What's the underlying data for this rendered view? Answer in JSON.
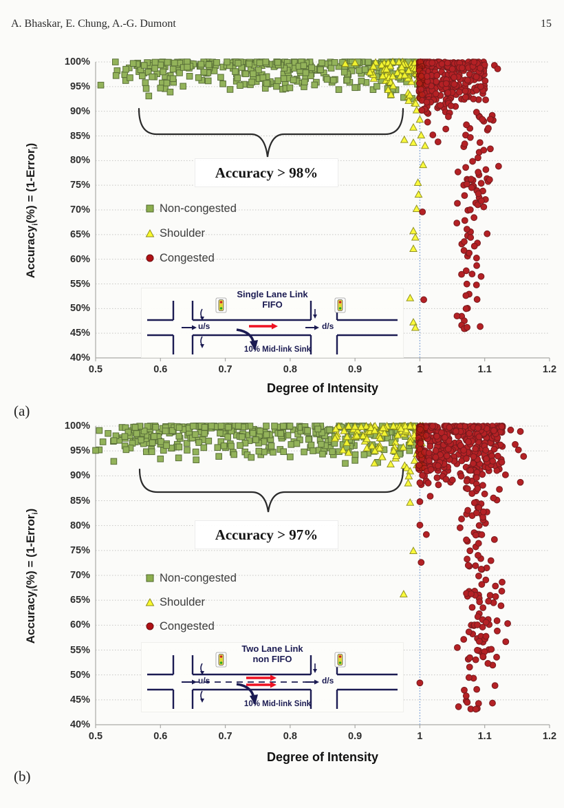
{
  "header": {
    "authors": "A. Bhaskar, E. Chung, A.-G. Dumont",
    "page_number": "15"
  },
  "colors": {
    "non_congested_fill": "#8CAE4E",
    "non_congested_stroke": "#4d652a",
    "shoulder_fill": "#FAFA2E",
    "shoulder_stroke": "#8b8b15",
    "congested_fill": "#AF1115",
    "congested_stroke": "#6d0a0d",
    "grid": "#c6c6c3",
    "axis": "#a9a9a6",
    "doi_line": "#8FAEDC",
    "brace": "#2b2b2b",
    "inset_ink": "#1b1b52",
    "inset_arrow": "#ee1122"
  },
  "chart_data": [
    {
      "type": "scatter",
      "panel_label": "(a)",
      "xlabel": "Degree of Intensity",
      "ylabel": "Accuracy_i(%) = (1-Error_i)",
      "ylabel_parts": {
        "p1": "Accuracy",
        "s1": "i",
        "p2": "(%) = (1-Error",
        "s2": "i",
        "p3": ")"
      },
      "xlim": [
        0.5,
        1.2
      ],
      "ylim": [
        40,
        100
      ],
      "x_ticks": [
        "0.5",
        "0.6",
        "0.7",
        "0.8",
        "0.9",
        "1",
        "1.1",
        "1.2"
      ],
      "y_ticks": [
        "100%",
        "95%",
        "90%",
        "85%",
        "80%",
        "75%",
        "70%",
        "65%",
        "60%",
        "55%",
        "50%",
        "45%",
        "40%"
      ],
      "grid": true,
      "legend_position": "inside-left",
      "reference_line_x": 1.0,
      "annotation": "Accuracy > 98%",
      "inset": {
        "title1": "Single Lane Link",
        "title2": "FIFO",
        "us": "u/s",
        "ds": "d/s",
        "sink": "10% Mid-link Sink",
        "center_line": "none",
        "arrows": 1
      },
      "series": [
        {
          "name": "Non-congested",
          "marker": "square",
          "clusters": [
            {
              "count": 310,
              "x": [
                0.6,
                0.998
              ],
              "y": [
                94.3,
                100
              ],
              "yp": 2.5,
              "xp": 1.15
            },
            {
              "count": 26,
              "x": [
                0.528,
                0.605
              ],
              "y": [
                94.6,
                100
              ],
              "yp": 1.8
            }
          ],
          "points": [
            [
              0.508,
              95.3
            ],
            [
              0.553,
              96.8
            ],
            [
              0.558,
              99.7
            ],
            [
              0.575,
              99.3
            ],
            [
              0.582,
              93.1
            ],
            [
              0.578,
              94.6
            ],
            [
              0.6,
              94.7
            ],
            [
              0.615,
              93.9
            ],
            [
              0.875,
              94.4
            ],
            [
              0.9,
              94.8
            ],
            [
              0.955,
              93.3
            ],
            [
              0.975,
              92.8
            ],
            [
              0.988,
              92.6
            ]
          ]
        },
        {
          "name": "Shoulder",
          "marker": "triangle",
          "clusters": [
            {
              "count": 72,
              "x": [
                0.922,
                1.004
              ],
              "y": [
                95,
                100
              ],
              "xp": 1.7,
              "yp": 1.7
            },
            {
              "count": 10,
              "x": [
                0.95,
                1.002
              ],
              "y": [
                91.5,
                95
              ],
              "xp": 1.4
            }
          ],
          "points": [
            [
              0.9,
              99.8
            ],
            [
              0.885,
              99.6
            ],
            [
              0.995,
              90.2
            ],
            [
              1.0,
              88.3
            ],
            [
              0.99,
              86.7
            ],
            [
              1.002,
              85.1
            ],
            [
              0.976,
              84.2
            ],
            [
              0.99,
              83.6
            ],
            [
              1.008,
              83.0
            ],
            [
              1.005,
              79.1
            ],
            [
              0.997,
              75.5
            ],
            [
              0.998,
              73.1
            ],
            [
              0.995,
              70.2
            ],
            [
              0.99,
              65.7
            ],
            [
              0.993,
              64.4
            ],
            [
              0.99,
              62.1
            ],
            [
              0.985,
              52.1
            ],
            [
              0.99,
              47.2
            ],
            [
              0.993,
              46.1
            ]
          ]
        },
        {
          "name": "Congested",
          "marker": "circle",
          "clusters": [
            {
              "count": 330,
              "x": [
                0.999,
                1.102
              ],
              "y": [
                92.3,
                100
              ],
              "xp": -1.6,
              "yp": 1.9
            },
            {
              "count": 22,
              "x": [
                1.0,
                1.07
              ],
              "y": [
                89.5,
                92.5
              ],
              "xp": -1.3
            },
            {
              "count": 78,
              "cx": 1.085,
              "xs": 0.021,
              "y": [
                56,
                90
              ]
            },
            {
              "count": 15,
              "cx": 1.074,
              "xs": 0.017,
              "y": [
                44,
                56
              ]
            }
          ],
          "points": [
            [
              1.003,
              90.2
            ],
            [
              1.012,
              87.8
            ],
            [
              1.02,
              85.2
            ],
            [
              1.028,
              83.8
            ],
            [
              1.004,
              69.6
            ],
            [
              1.006,
              51.8
            ],
            [
              1.044,
              88.9
            ],
            [
              1.04,
              86.4
            ],
            [
              1.115,
              99.3
            ],
            [
              1.12,
              98.6
            ]
          ]
        }
      ]
    },
    {
      "type": "scatter",
      "panel_label": "(b)",
      "xlabel": "Degree of Intensity",
      "ylabel": "Accuracy_i(%) = (1-Error_i)",
      "ylabel_parts": {
        "p1": "Accuracy",
        "s1": "i",
        "p2": "(%) = (1-Error",
        "s2": "i",
        "p3": ")"
      },
      "xlim": [
        0.5,
        1.2
      ],
      "ylim": [
        40,
        100
      ],
      "x_ticks": [
        "0.5",
        "0.6",
        "0.7",
        "0.8",
        "0.9",
        "1",
        "1.1",
        "1.2"
      ],
      "y_ticks": [
        "100%",
        "95%",
        "90%",
        "85%",
        "80%",
        "75%",
        "70%",
        "65%",
        "60%",
        "55%",
        "50%",
        "45%",
        "40%"
      ],
      "grid": true,
      "legend_position": "inside-left",
      "reference_line_x": 1.0,
      "annotation": "Accuracy > 97%",
      "inset": {
        "title1": "Two Lane Link",
        "title2": "non FIFO",
        "us": "u/s",
        "ds": "d/s",
        "sink": "10% Mid-link Sink",
        "center_line": "dashed",
        "arrows": 2
      },
      "series": [
        {
          "name": "Non-congested",
          "marker": "square",
          "clusters": [
            {
              "count": 340,
              "x": [
                0.558,
                0.996
              ],
              "y": [
                94.2,
                100
              ],
              "yp": 2.2
            },
            {
              "count": 24,
              "x": [
                0.505,
                0.562
              ],
              "y": [
                94.8,
                99.8
              ],
              "yp": 1.4
            }
          ],
          "points": [
            [
              0.5,
              95.1
            ],
            [
              0.528,
              92.9
            ],
            [
              0.545,
              97.9
            ],
            [
              0.6,
              93.4
            ],
            [
              0.628,
              93.6
            ],
            [
              0.655,
              93.2
            ],
            [
              0.69,
              93.9
            ],
            [
              0.74,
              93.7
            ],
            [
              0.8,
              93.8
            ],
            [
              0.885,
              92.5
            ],
            [
              0.9,
              93.1
            ],
            [
              0.935,
              92.7
            ]
          ]
        },
        {
          "name": "Shoulder",
          "marker": "triangle",
          "clusters": [
            {
              "count": 95,
              "x": [
                0.868,
                1.006
              ],
              "y": [
                94.4,
                100
              ],
              "xp": 1.6,
              "yp": 1.6
            },
            {
              "count": 12,
              "x": [
                0.94,
                1.004
              ],
              "y": [
                91.5,
                94.4
              ],
              "xp": 1.3
            }
          ],
          "points": [
            [
              0.93,
              92.5
            ],
            [
              0.955,
              92.3
            ],
            [
              0.985,
              90.9
            ],
            [
              0.983,
              89.9
            ],
            [
              0.982,
              88.5
            ],
            [
              0.985,
              84.6
            ],
            [
              0.99,
              74.9
            ],
            [
              0.975,
              66.2
            ]
          ]
        },
        {
          "name": "Congested",
          "marker": "circle",
          "clusters": [
            {
              "count": 400,
              "x": [
                0.998,
                1.128
              ],
              "y": [
                91,
                100
              ],
              "xp": -1.5,
              "yp": 1.8
            },
            {
              "count": 30,
              "x": [
                1.0,
                1.105
              ],
              "y": [
                88,
                91.3
              ],
              "xp": -1.2
            },
            {
              "count": 110,
              "cx": 1.094,
              "xs": 0.024,
              "y": [
                50,
                88
              ]
            },
            {
              "count": 14,
              "cx": 1.083,
              "xs": 0.02,
              "y": [
                43,
                50
              ]
            }
          ],
          "points": [
            [
              1.0,
              88.6
            ],
            [
              1.0,
              84.8
            ],
            [
              1.0,
              80.1
            ],
            [
              1.002,
              72.6
            ],
            [
              1.0,
              48.4
            ],
            [
              1.01,
              78.2
            ],
            [
              1.016,
              85.9
            ],
            [
              1.14,
              99.2
            ],
            [
              1.155,
              98.9
            ],
            [
              1.147,
              96.3
            ],
            [
              1.152,
              95.2
            ],
            [
              1.16,
              93.9
            ],
            [
              1.132,
              90.2
            ],
            [
              1.155,
              88.7
            ]
          ]
        }
      ]
    }
  ]
}
